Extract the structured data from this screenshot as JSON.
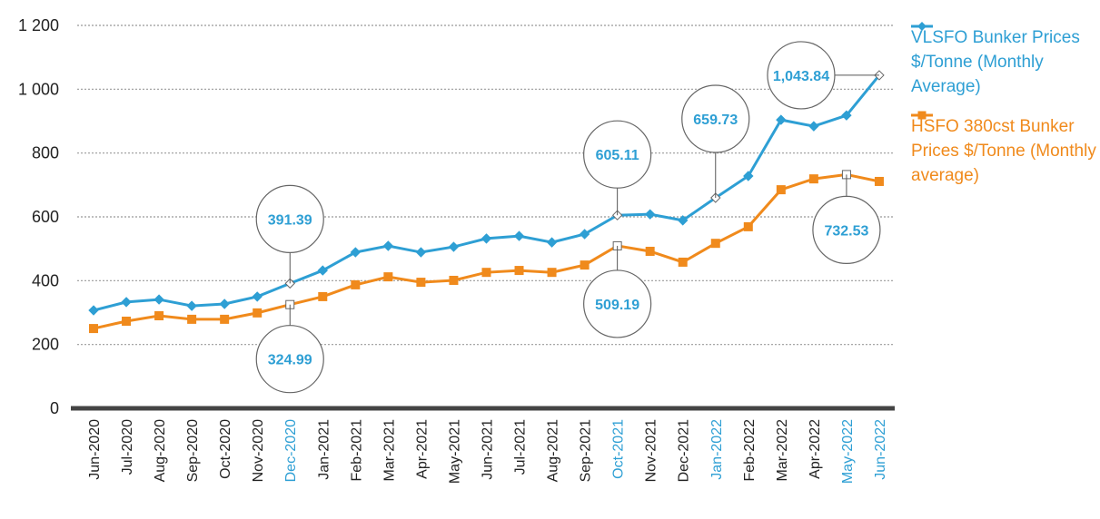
{
  "chart_data": {
    "type": "line",
    "categories": [
      "Jun-2020",
      "Jul-2020",
      "Aug-2020",
      "Sep-2020",
      "Oct-2020",
      "Nov-2020",
      "Dec-2020",
      "Jan-2021",
      "Feb-2021",
      "Mar-2021",
      "Apr-2021",
      "May-2021",
      "Jun-2021",
      "Jul-2021",
      "Aug-2021",
      "Sep-2021",
      "Oct-2021",
      "Nov-2021",
      "Dec-2021",
      "Jan-2022",
      "Feb-2022",
      "Mar-2022",
      "Apr-2022",
      "May-2022",
      "Jun-2022"
    ],
    "highlighted_categories": [
      6,
      16,
      19,
      23,
      24
    ],
    "highlight_color": "#2e9fd4",
    "category_color": "#222222",
    "series": [
      {
        "name": "VLSFO Bunker Prices $/Tonne (Monthly Average)",
        "color": "#2e9fd4",
        "marker": "diamond",
        "values": [
          307,
          333,
          341,
          321,
          327,
          350,
          391.39,
          432,
          489,
          509,
          489,
          506,
          532,
          540,
          520,
          546,
          605.11,
          608,
          589,
          659.73,
          728,
          904,
          884,
          918,
          1043.84
        ],
        "value_labels": [
          null,
          null,
          null,
          null,
          null,
          null,
          "391.39",
          null,
          null,
          null,
          null,
          null,
          null,
          null,
          null,
          null,
          "605.11",
          null,
          null,
          "659.73",
          null,
          null,
          null,
          null,
          "1,043.84"
        ]
      },
      {
        "name": "HSFO 380cst Bunker Prices $/Tonne (Monthly average)",
        "color": "#f08a1c",
        "marker": "square",
        "values": [
          250,
          273,
          290,
          279,
          279,
          299,
          324.99,
          350,
          387,
          412,
          395,
          401,
          426,
          432,
          426,
          449,
          509.19,
          492,
          458,
          517,
          569,
          685,
          719,
          732.53,
          711
        ],
        "value_labels": [
          null,
          null,
          null,
          null,
          null,
          null,
          "324.99",
          null,
          null,
          null,
          null,
          null,
          null,
          null,
          null,
          null,
          "509.19",
          null,
          null,
          null,
          null,
          null,
          null,
          "732.53",
          null
        ]
      }
    ],
    "ylim": [
      0,
      1200
    ],
    "yticks": [
      0,
      200,
      400,
      600,
      800,
      {
        "value": 1000,
        "label": "1 000"
      },
      {
        "value": 1200,
        "label": "1 200"
      }
    ],
    "grid": true,
    "legend": "right"
  }
}
